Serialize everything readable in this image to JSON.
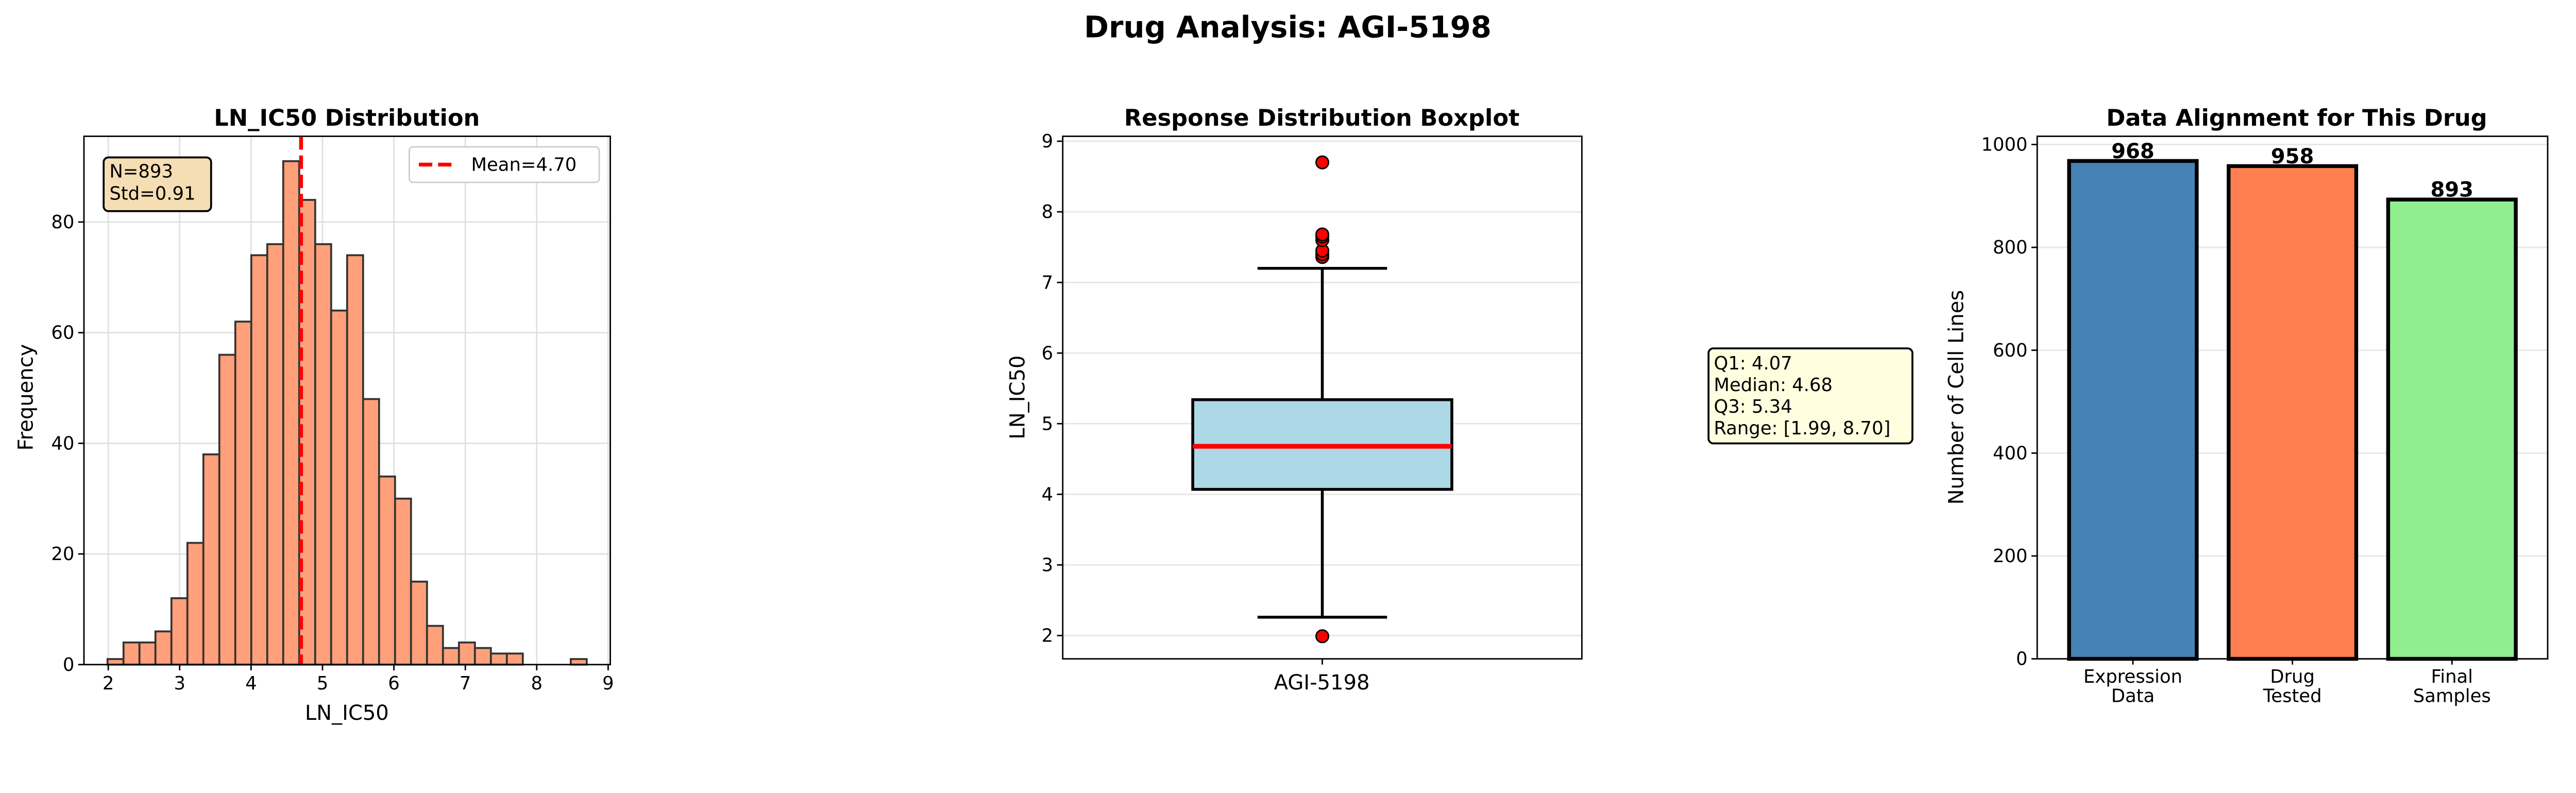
{
  "suptitle": "Drug Analysis: AGI-5198",
  "chart_data": [
    {
      "type": "bar",
      "subtype": "histogram",
      "title": "LN_IC50 Distribution",
      "xlabel": "LN_IC50",
      "ylabel": "Frequency",
      "bin_range": [
        1.99,
        8.7
      ],
      "counts": [
        1,
        4,
        4,
        6,
        12,
        22,
        38,
        56,
        62,
        74,
        76,
        91,
        84,
        76,
        64,
        74,
        48,
        34,
        30,
        15,
        7,
        3,
        4,
        3,
        2,
        2,
        0,
        0,
        0,
        1
      ],
      "xlim": [
        1.66,
        9.03
      ],
      "ylim": [
        0,
        95.5
      ],
      "xticks": [
        "2",
        "3",
        "4",
        "5",
        "6",
        "7",
        "8",
        "9"
      ],
      "yticks": [
        "0",
        "20",
        "40",
        "60",
        "80"
      ],
      "mean_line": 4.7,
      "legend": {
        "label": "Mean=4.70",
        "placement": "top-right"
      },
      "stats_box": {
        "lines": [
          "N=893",
          "Std=0.91"
        ],
        "placement": "top-left"
      },
      "grid": true,
      "colors": {
        "bar": "#FFA07A",
        "edge": "#333333",
        "mean": "#FF0000",
        "stats_bg": "#F5DEB3"
      }
    },
    {
      "type": "boxplot",
      "title": "Response Distribution Boxplot",
      "ylabel": "LN_IC50",
      "category": "AGI-5198",
      "q1": 4.07,
      "median": 4.68,
      "q3": 5.34,
      "whisker_low": 2.26,
      "whisker_high": 7.2,
      "outliers": [
        1.99,
        7.36,
        7.4,
        7.45,
        7.6,
        7.65,
        7.68,
        8.7
      ],
      "ylim": [
        1.67,
        9.07
      ],
      "yticks": [
        "2",
        "3",
        "4",
        "5",
        "6",
        "7",
        "8",
        "9"
      ],
      "grid": true,
      "annotation": [
        "Q1: 4.07",
        "Median: 4.68",
        "Q3: 5.34",
        "Range: [1.99, 8.70]"
      ],
      "colors": {
        "box": "#ADD8E6",
        "median": "#FF0000",
        "outlier": "#FF0000",
        "annotation_bg": "#FFFFE0"
      }
    },
    {
      "type": "bar",
      "title": "Data Alignment for This Drug",
      "ylabel": "Number of Cell Lines",
      "categories": [
        [
          "Expression",
          "Data"
        ],
        [
          "Drug",
          "Tested"
        ],
        [
          "Final",
          "Samples"
        ]
      ],
      "values": [
        968,
        958,
        893
      ],
      "value_labels": [
        "968",
        "958",
        "893"
      ],
      "ylim": [
        0,
        1016
      ],
      "yticks": [
        "0",
        "200",
        "400",
        "600",
        "800",
        "1000"
      ],
      "grid": true,
      "colors": [
        "#4682B4",
        "#FF7F50",
        "#90EE90"
      ]
    }
  ]
}
